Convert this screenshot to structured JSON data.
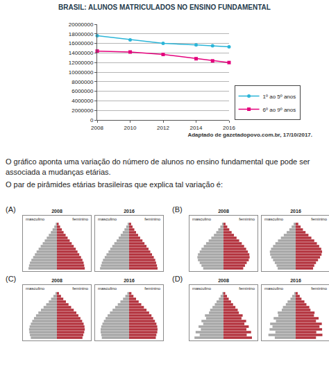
{
  "chart_data": {
    "type": "line",
    "title": "BRASIL: ALUNOS MATRICULADOS NO ENSINO FUNDAMENTAL",
    "x": [
      2008,
      2010,
      2012,
      2014,
      2015,
      2016
    ],
    "series": [
      {
        "name": "1º ao 5º anos",
        "color": "#2bb5d8",
        "marker": "circle",
        "line_style": "solid",
        "values": [
          17600000,
          16750000,
          16000000,
          15700000,
          15500000,
          15300000
        ]
      },
      {
        "name": "6º ao 9º anos",
        "color": "#e4007c",
        "marker": "square",
        "line_style": "solid",
        "values": [
          14400000,
          14200000,
          13700000,
          12800000,
          12350000,
          12000000
        ]
      }
    ],
    "xlim": [
      2008,
      2016
    ],
    "xticks": [
      2008,
      2010,
      2012,
      2014,
      2016
    ],
    "ylim": [
      0,
      20000000
    ],
    "yticks": [
      0,
      2000000,
      4000000,
      6000000,
      8000000,
      10000000,
      12000000,
      14000000,
      16000000,
      18000000,
      20000000
    ],
    "grid": true,
    "legend": "lower right"
  },
  "source": "Adaptado de gazetadopovo.com.br, 17/10/2017.",
  "question": [
    "O gráfico aponta uma variação do número de alunos no ensino fundamental que pode ser associada a mudanças etárias.",
    "O par de pirâmides etárias brasileiras que explica tal variação é:"
  ],
  "options": [
    {
      "label": "(A)",
      "pyramids": [
        {
          "type": "bar",
          "orientation": "horizontal",
          "title": "2008",
          "tick_labels": false,
          "xlim": [
            0,
            11
          ],
          "categories": [
            null,
            null,
            null,
            null,
            null,
            null,
            null,
            null,
            null,
            null,
            null,
            null,
            null,
            null,
            null,
            null,
            null
          ],
          "series": [
            {
              "name": "masculino",
              "color": "#a6a6a6",
              "values": [
                9.8,
                9.6,
                9.3,
                8.8,
                8.2,
                7.6,
                7.0,
                6.3,
                5.6,
                4.9,
                4.2,
                3.5,
                2.8,
                2.1,
                1.5,
                0.9,
                0.4
              ]
            },
            {
              "name": "feminino",
              "color": "#b3323d",
              "values": [
                9.6,
                9.4,
                9.2,
                8.8,
                8.3,
                7.7,
                7.1,
                6.5,
                5.8,
                5.1,
                4.4,
                3.7,
                3.0,
                2.3,
                1.7,
                1.1,
                0.6
              ]
            }
          ]
        },
        {
          "type": "bar",
          "orientation": "horizontal",
          "title": "2016",
          "tick_labels": false,
          "xlim": [
            0,
            11
          ],
          "categories": [
            null,
            null,
            null,
            null,
            null,
            null,
            null,
            null,
            null,
            null,
            null,
            null,
            null,
            null,
            null,
            null,
            null
          ],
          "series": [
            {
              "name": "masculino",
              "color": "#a6a6a6",
              "values": [
                10.0,
                9.7,
                9.4,
                9.0,
                8.4,
                7.8,
                7.1,
                6.5,
                5.8,
                5.1,
                4.3,
                3.6,
                2.9,
                2.2,
                1.6,
                1.0,
                0.5
              ]
            },
            {
              "name": "feminino",
              "color": "#b3323d",
              "values": [
                9.8,
                9.6,
                9.3,
                9.0,
                8.5,
                7.9,
                7.3,
                6.7,
                6.0,
                5.3,
                4.6,
                3.8,
                3.1,
                2.4,
                1.8,
                1.2,
                0.7
              ]
            }
          ]
        }
      ]
    },
    {
      "label": "(B)",
      "pyramids": [
        {
          "type": "bar",
          "orientation": "horizontal",
          "title": "2008",
          "tick_labels": false,
          "xlim": [
            0,
            11
          ],
          "categories": [
            null,
            null,
            null,
            null,
            null,
            null,
            null,
            null,
            null,
            null,
            null,
            null,
            null,
            null,
            null,
            null,
            null
          ],
          "series": [
            {
              "name": "masculino",
              "color": "#a6a6a6",
              "values": [
                7.0,
                7.6,
                8.2,
                8.8,
                9.0,
                8.8,
                8.2,
                7.6,
                6.8,
                6.0,
                5.1,
                4.2,
                3.3,
                2.5,
                1.8,
                1.1,
                0.5
              ]
            },
            {
              "name": "feminino",
              "color": "#b3323d",
              "values": [
                6.8,
                7.4,
                8.0,
                8.7,
                9.0,
                8.9,
                8.4,
                7.8,
                7.1,
                6.3,
                5.4,
                4.5,
                3.6,
                2.8,
                2.0,
                1.3,
                0.7
              ]
            }
          ]
        },
        {
          "type": "bar",
          "orientation": "horizontal",
          "title": "2016",
          "tick_labels": false,
          "xlim": [
            0,
            11
          ],
          "categories": [
            null,
            null,
            null,
            null,
            null,
            null,
            null,
            null,
            null,
            null,
            null,
            null,
            null,
            null,
            null,
            null,
            null
          ],
          "series": [
            {
              "name": "masculino",
              "color": "#a6a6a6",
              "values": [
                6.2,
                6.6,
                7.2,
                7.8,
                8.4,
                8.8,
                8.9,
                8.5,
                7.8,
                7.0,
                6.1,
                5.1,
                4.1,
                3.1,
                2.2,
                1.4,
                0.7
              ]
            },
            {
              "name": "feminino",
              "color": "#b3323d",
              "values": [
                6.0,
                6.4,
                7.0,
                7.7,
                8.4,
                8.9,
                9.1,
                8.8,
                8.1,
                7.3,
                6.4,
                5.4,
                4.4,
                3.4,
                2.5,
                1.7,
                0.9
              ]
            }
          ]
        }
      ]
    },
    {
      "label": "(C)",
      "pyramids": [
        {
          "type": "bar",
          "orientation": "horizontal",
          "title": "2008",
          "tick_labels": false,
          "xlim": [
            0,
            11
          ],
          "categories": [
            null,
            null,
            null,
            null,
            null,
            null,
            null,
            null,
            null,
            null,
            null,
            null,
            null,
            null,
            null,
            null,
            null
          ],
          "series": [
            {
              "name": "masculino",
              "color": "#a6a6a6",
              "values": [
                9.0,
                9.3,
                9.5,
                9.6,
                9.4,
                9.0,
                8.5,
                7.9,
                7.2,
                6.4,
                5.5,
                4.6,
                3.7,
                2.8,
                2.0,
                1.2,
                0.5
              ]
            },
            {
              "name": "feminino",
              "color": "#b3323d",
              "values": [
                8.8,
                9.1,
                9.4,
                9.6,
                9.5,
                9.2,
                8.7,
                8.1,
                7.4,
                6.7,
                5.8,
                4.9,
                4.0,
                3.1,
                2.2,
                1.4,
                0.7
              ]
            }
          ]
        },
        {
          "type": "bar",
          "orientation": "horizontal",
          "title": "2016",
          "tick_labels": false,
          "xlim": [
            0,
            11
          ],
          "categories": [
            null,
            null,
            null,
            null,
            null,
            null,
            null,
            null,
            null,
            null,
            null,
            null,
            null,
            null,
            null,
            null,
            null
          ],
          "series": [
            {
              "name": "masculino",
              "color": "#a6a6a6",
              "values": [
                9.4,
                9.6,
                9.8,
                9.8,
                9.6,
                9.2,
                8.7,
                8.1,
                7.4,
                6.6,
                5.7,
                4.8,
                3.9,
                3.0,
                2.1,
                1.3,
                0.6
              ]
            },
            {
              "name": "feminino",
              "color": "#b3323d",
              "values": [
                9.2,
                9.4,
                9.7,
                9.8,
                9.7,
                9.4,
                8.9,
                8.3,
                7.7,
                6.9,
                6.0,
                5.1,
                4.2,
                3.3,
                2.4,
                1.5,
                0.8
              ]
            }
          ]
        }
      ]
    },
    {
      "label": "(D)",
      "pyramids": [
        {
          "type": "bar",
          "orientation": "horizontal",
          "title": "2008",
          "tick_labels": false,
          "xlim": [
            0,
            11
          ],
          "categories": [
            null,
            null,
            null,
            null,
            null,
            null,
            null,
            null,
            null,
            null,
            null,
            null,
            null,
            null,
            null,
            null,
            null
          ],
          "series": [
            {
              "name": "masculino",
              "color": "#a6a6a6",
              "values": [
                10.0,
                8.2,
                9.6,
                7.8,
                8.6,
                7.0,
                7.6,
                6.0,
                6.4,
                5.0,
                4.6,
                3.8,
                3.0,
                2.4,
                1.6,
                1.0,
                0.4
              ]
            },
            {
              "name": "feminino",
              "color": "#b3323d",
              "values": [
                9.8,
                8.0,
                9.5,
                7.9,
                8.7,
                7.2,
                7.8,
                6.2,
                6.6,
                5.3,
                4.9,
                4.1,
                3.3,
                2.6,
                1.8,
                1.2,
                0.6
              ]
            }
          ]
        },
        {
          "type": "bar",
          "orientation": "horizontal",
          "title": "2016",
          "tick_labels": false,
          "xlim": [
            0,
            11
          ],
          "categories": [
            null,
            null,
            null,
            null,
            null,
            null,
            null,
            null,
            null,
            null,
            null,
            null,
            null,
            null,
            null,
            null,
            null
          ],
          "series": [
            {
              "name": "masculino",
              "color": "#a6a6a6",
              "values": [
                7.2,
                9.4,
                7.0,
                9.0,
                8.0,
                8.8,
                6.8,
                7.6,
                6.0,
                6.2,
                4.8,
                4.4,
                3.4,
                2.8,
                1.8,
                1.2,
                0.5
              ]
            },
            {
              "name": "feminino",
              "color": "#b3323d",
              "values": [
                7.0,
                9.2,
                7.1,
                9.1,
                8.2,
                9.0,
                7.0,
                7.9,
                6.3,
                6.5,
                5.1,
                4.7,
                3.7,
                3.0,
                2.0,
                1.4,
                0.7
              ]
            }
          ]
        }
      ]
    }
  ]
}
